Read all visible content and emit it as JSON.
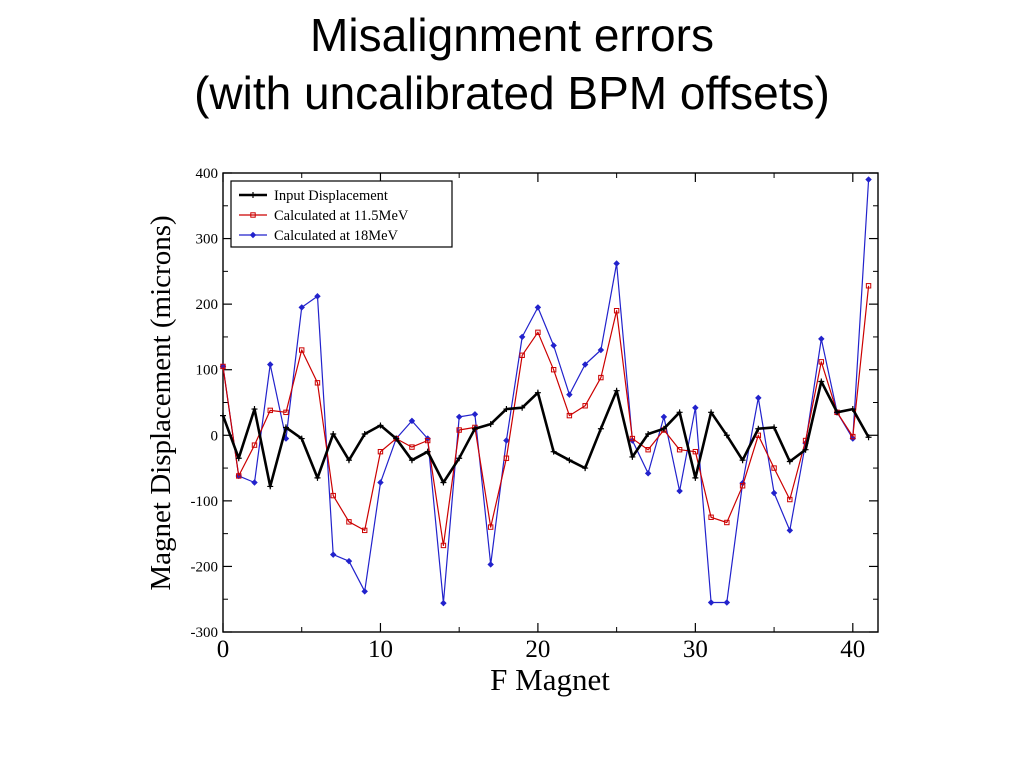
{
  "slide": {
    "title_line1": "Misalignment errors",
    "title_line2": "(with uncalibrated BPM offsets)"
  },
  "chart_data": {
    "type": "line",
    "title": "",
    "xlabel": "F Magnet",
    "ylabel": "Magnet Displacement (microns)",
    "xlim": [
      0,
      41.6
    ],
    "ylim": [
      -300,
      400
    ],
    "x_ticks": [
      0,
      10,
      20,
      30,
      40
    ],
    "y_ticks": [
      -300,
      -200,
      -100,
      0,
      100,
      200,
      300,
      400
    ],
    "grid": false,
    "legend_position": "top-left",
    "x": [
      0,
      1,
      2,
      3,
      4,
      5,
      6,
      7,
      8,
      9,
      10,
      11,
      12,
      13,
      14,
      15,
      16,
      17,
      18,
      19,
      20,
      21,
      22,
      23,
      24,
      25,
      26,
      27,
      28,
      29,
      30,
      31,
      32,
      33,
      34,
      35,
      36,
      37,
      38,
      39,
      40,
      41
    ],
    "series": [
      {
        "name": "Input Displacement",
        "color": "#000000",
        "marker": "plus",
        "values": [
          30,
          -35,
          40,
          -78,
          12,
          -5,
          -65,
          2,
          -38,
          2,
          15,
          -5,
          -38,
          -25,
          -72,
          -35,
          10,
          17,
          40,
          42,
          65,
          -25,
          -38,
          -50,
          10,
          68,
          -33,
          2,
          10,
          35,
          -65,
          35,
          0,
          -38,
          10,
          12,
          -40,
          -22,
          82,
          35,
          40,
          -3
        ]
      },
      {
        "name": "Calculated at 11.5MeV",
        "color": "#cc0000",
        "marker": "square",
        "values": [
          105,
          -62,
          -15,
          38,
          35,
          130,
          80,
          -92,
          -132,
          -145,
          -25,
          -5,
          -18,
          -8,
          -168,
          8,
          12,
          -140,
          -35,
          122,
          157,
          100,
          30,
          45,
          88,
          190,
          -5,
          -22,
          8,
          -22,
          -25,
          -125,
          -133,
          -77,
          0,
          -50,
          -98,
          -8,
          112,
          35,
          -2,
          228
        ]
      },
      {
        "name": "Calculated at 18MeV",
        "color": "#2222cc",
        "marker": "diamond",
        "values": [
          105,
          -62,
          -72,
          108,
          -5,
          195,
          212,
          -182,
          -192,
          -238,
          -72,
          -5,
          22,
          -5,
          -256,
          28,
          32,
          -197,
          -8,
          150,
          195,
          137,
          62,
          108,
          130,
          262,
          -8,
          -58,
          28,
          -85,
          42,
          -255,
          -255,
          -73,
          57,
          -88,
          -145,
          -12,
          147,
          35,
          -5,
          390
        ]
      }
    ]
  }
}
